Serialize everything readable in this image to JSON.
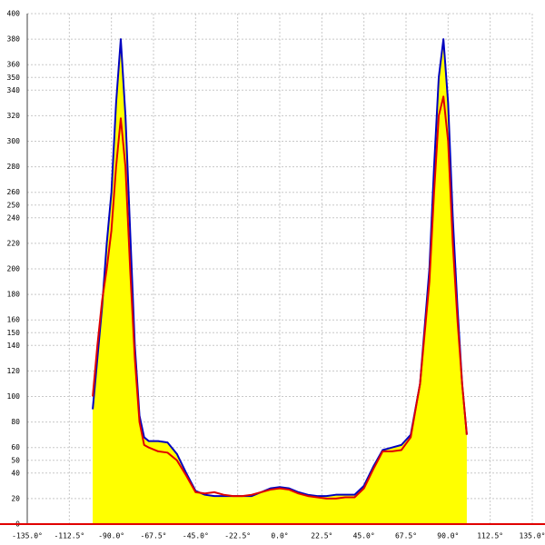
{
  "chart_data": {
    "type": "area",
    "x": [
      -100,
      -97.5,
      -95,
      -92.5,
      -90,
      -87.5,
      -85,
      -82.5,
      -80,
      -77.5,
      -75,
      -72.5,
      -70,
      -65,
      -60,
      -55,
      -50,
      -45,
      -40,
      -35,
      -30,
      -25,
      -20,
      -15,
      -10,
      -5,
      0,
      5,
      10,
      15,
      20,
      25,
      30,
      35,
      40,
      45,
      50,
      55,
      60,
      65,
      70,
      75,
      80,
      82.5,
      85,
      87.5,
      90,
      92.5,
      95,
      97.5,
      100
    ],
    "series": [
      {
        "color": "#0000c0",
        "fill": "#ffff00",
        "values": [
          90,
          130,
          170,
          220,
          260,
          330,
          380,
          320,
          230,
          140,
          85,
          68,
          65,
          65,
          64,
          55,
          40,
          26,
          23,
          22,
          22,
          22,
          22,
          22,
          25,
          28,
          29,
          28,
          25,
          23,
          22,
          22,
          23,
          23,
          23,
          30,
          45,
          58,
          60,
          62,
          70,
          110,
          200,
          280,
          350,
          380,
          330,
          240,
          170,
          110,
          70
        ]
      },
      {
        "color": "#e00000",
        "values": [
          100,
          140,
          175,
          200,
          230,
          280,
          318,
          280,
          200,
          130,
          80,
          62,
          60,
          57,
          56,
          50,
          38,
          25,
          24,
          25,
          23,
          22,
          22,
          23,
          25,
          27,
          28,
          27,
          24,
          22,
          21,
          20,
          20,
          21,
          21,
          28,
          43,
          57,
          57,
          58,
          68,
          110,
          190,
          260,
          320,
          335,
          300,
          220,
          160,
          110,
          70
        ]
      }
    ],
    "xlim": [
      -135,
      135
    ],
    "ylim": [
      0,
      400
    ],
    "xticks": [
      {
        "value": -135,
        "label": "-135.0°"
      },
      {
        "value": -112.5,
        "label": "-112.5°"
      },
      {
        "value": -90,
        "label": "-90.0°"
      },
      {
        "value": -67.5,
        "label": "-67.5°"
      },
      {
        "value": -45,
        "label": "-45.0°"
      },
      {
        "value": -22.5,
        "label": "-22.5°"
      },
      {
        "value": 0,
        "label": "0.0°"
      },
      {
        "value": 22.5,
        "label": "22.5°"
      },
      {
        "value": 45,
        "label": "45.0°"
      },
      {
        "value": 67.5,
        "label": "67.5°"
      },
      {
        "value": 90,
        "label": "90.0°"
      },
      {
        "value": 112.5,
        "label": "112.5°"
      },
      {
        "value": 135,
        "label": "135.0°"
      }
    ],
    "yticks": [
      0,
      20,
      40,
      50,
      60,
      80,
      100,
      120,
      140,
      150,
      160,
      180,
      200,
      220,
      240,
      250,
      260,
      280,
      300,
      320,
      340,
      350,
      360,
      380,
      400
    ],
    "grid": true,
    "baseline_color": "#e00000"
  }
}
